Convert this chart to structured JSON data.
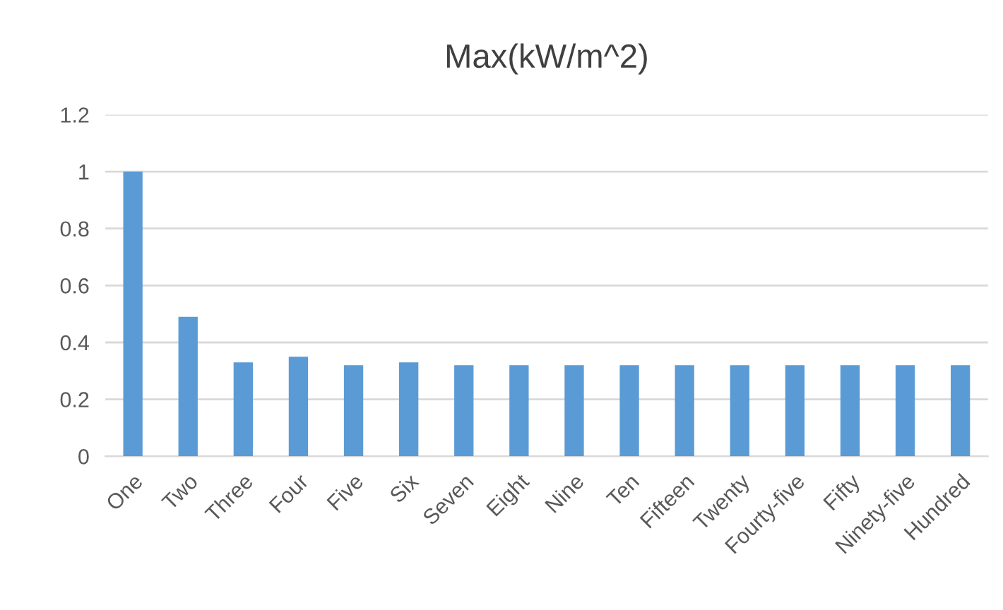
{
  "chart_data": {
    "type": "bar",
    "title": "Max(kW/m^2)",
    "categories": [
      "One",
      "Two",
      "Three",
      "Four",
      "Five",
      "Six",
      "Seven",
      "Eight",
      "Nine",
      "Ten",
      "Fifteen",
      "Twenty",
      "Fourty-five",
      "Fifty",
      "Ninety-five",
      "Hundred"
    ],
    "values": [
      1.0,
      0.49,
      0.33,
      0.35,
      0.32,
      0.33,
      0.32,
      0.32,
      0.32,
      0.32,
      0.32,
      0.32,
      0.32,
      0.32,
      0.32,
      0.32
    ],
    "color": "#5b9bd5",
    "ylim": [
      0,
      1.2
    ],
    "yticks": [
      0,
      {
        "value": 0.2,
        "label": "0.2"
      },
      {
        "value": 0.4,
        "label": "0.4"
      },
      {
        "value": 0.6,
        "label": "0.6"
      },
      {
        "value": 0.8,
        "label": "0.8"
      },
      1,
      {
        "value": 1.2,
        "label": "1.2"
      }
    ],
    "grid": "y"
  }
}
